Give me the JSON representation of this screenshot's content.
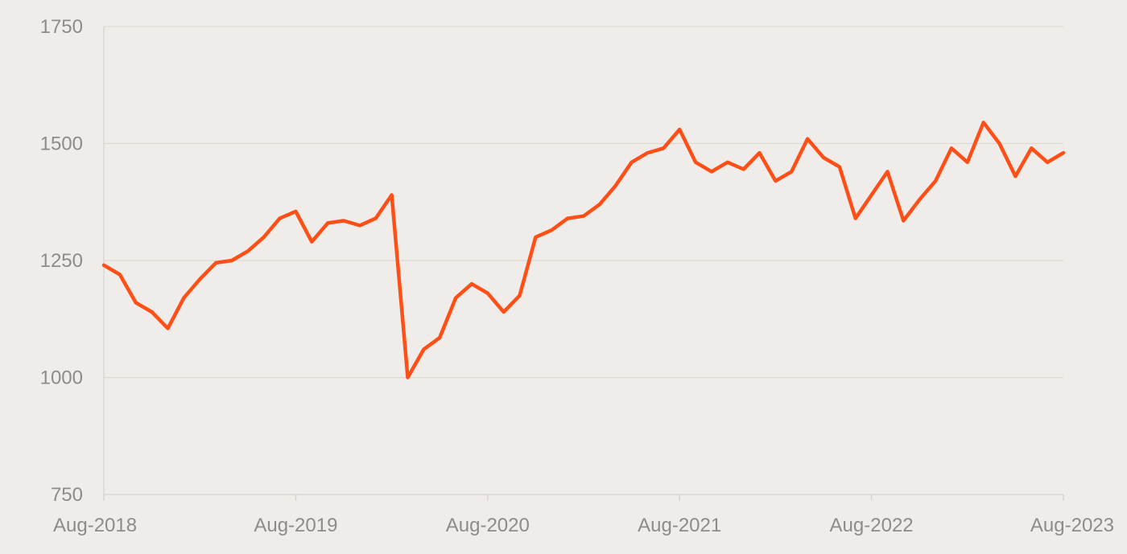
{
  "colors": {
    "background": "#f0ece9",
    "line": "#ff4f17",
    "grid": "#dcd8d5",
    "tick_text": "#8c8c8c"
  },
  "chart_data": {
    "type": "line",
    "title": "",
    "xlabel": "",
    "ylabel": "",
    "ylim": [
      750,
      1750
    ],
    "xlim": [
      "2018-08",
      "2023-08"
    ],
    "grid": "horizontal",
    "legend": "none",
    "yticks": [
      750,
      1000,
      1250,
      1500,
      1750
    ],
    "yticklabels": [
      "750",
      "1000",
      "1250",
      "1500",
      "1750"
    ],
    "xticks": [
      "2018-08",
      "2019-08",
      "2020-08",
      "2021-08",
      "2022-08",
      "2023-08"
    ],
    "xticklabels": [
      "Aug-2018",
      "Aug-2019",
      "Aug-2020",
      "Aug-2021",
      "Aug-2022",
      "Aug-2023"
    ],
    "series": [
      {
        "name": "",
        "x": [
          "2018-08",
          "2018-09",
          "2018-10",
          "2018-11",
          "2018-12",
          "2019-01",
          "2019-02",
          "2019-03",
          "2019-04",
          "2019-05",
          "2019-06",
          "2019-07",
          "2019-08",
          "2019-09",
          "2019-10",
          "2019-11",
          "2019-12",
          "2020-01",
          "2020-02",
          "2020-03",
          "2020-04",
          "2020-05",
          "2020-06",
          "2020-07",
          "2020-08",
          "2020-09",
          "2020-10",
          "2020-11",
          "2020-12",
          "2021-01",
          "2021-02",
          "2021-03",
          "2021-04",
          "2021-05",
          "2021-06",
          "2021-07",
          "2021-08",
          "2021-09",
          "2021-10",
          "2021-11",
          "2021-12",
          "2022-01",
          "2022-02",
          "2022-03",
          "2022-04",
          "2022-05",
          "2022-06",
          "2022-07",
          "2022-08",
          "2022-09",
          "2022-10",
          "2022-11",
          "2022-12",
          "2023-01",
          "2023-02",
          "2023-03",
          "2023-04",
          "2023-05",
          "2023-06",
          "2023-07",
          "2023-08"
        ],
        "values": [
          1240,
          1220,
          1160,
          1140,
          1105,
          1170,
          1210,
          1245,
          1250,
          1270,
          1300,
          1340,
          1355,
          1290,
          1330,
          1335,
          1325,
          1340,
          1390,
          1000,
          1060,
          1085,
          1170,
          1200,
          1180,
          1140,
          1175,
          1300,
          1315,
          1340,
          1345,
          1370,
          1410,
          1460,
          1480,
          1490,
          1530,
          1460,
          1440,
          1460,
          1445,
          1480,
          1420,
          1440,
          1510,
          1470,
          1450,
          1340,
          1390,
          1440,
          1335,
          1380,
          1420,
          1490,
          1460,
          1545,
          1500,
          1430,
          1490,
          1460,
          1480
        ]
      }
    ]
  }
}
